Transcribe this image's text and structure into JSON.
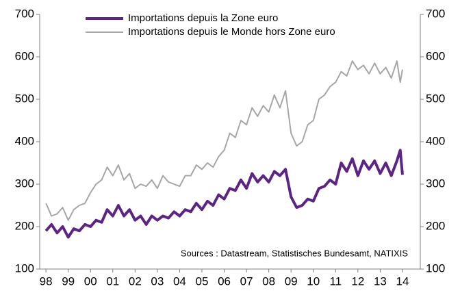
{
  "chart_data": {
    "type": "line",
    "annotation": "Sources : Datastream, Statistisches Bundesamt, NATIXIS",
    "x": [
      1998,
      1998.25,
      1998.5,
      1998.75,
      1999,
      1999.25,
      1999.5,
      1999.75,
      2000,
      2000.25,
      2000.5,
      2000.75,
      2001,
      2001.25,
      2001.5,
      2001.75,
      2002,
      2002.25,
      2002.5,
      2002.75,
      2003,
      2003.25,
      2003.5,
      2003.75,
      2004,
      2004.25,
      2004.5,
      2004.75,
      2005,
      2005.25,
      2005.5,
      2005.75,
      2006,
      2006.25,
      2006.5,
      2006.75,
      2007,
      2007.25,
      2007.5,
      2007.75,
      2008,
      2008.25,
      2008.5,
      2008.75,
      2009,
      2009.25,
      2009.5,
      2009.75,
      2010,
      2010.25,
      2010.5,
      2010.75,
      2011,
      2011.25,
      2011.5,
      2011.75,
      2012,
      2012.25,
      2012.5,
      2012.75,
      2013,
      2013.25,
      2013.5,
      2013.75,
      2013.9,
      2014
    ],
    "series": [
      {
        "name": "Importations depuis la Zone euro",
        "color": "#5c2483",
        "width": 4,
        "values": [
          190,
          205,
          185,
          200,
          175,
          195,
          190,
          205,
          200,
          215,
          210,
          240,
          225,
          250,
          225,
          240,
          215,
          225,
          205,
          225,
          215,
          225,
          220,
          235,
          225,
          240,
          235,
          255,
          240,
          260,
          250,
          275,
          265,
          290,
          285,
          310,
          290,
          325,
          305,
          320,
          305,
          330,
          320,
          335,
          270,
          245,
          250,
          265,
          260,
          290,
          295,
          310,
          300,
          350,
          330,
          360,
          320,
          355,
          335,
          355,
          325,
          350,
          320,
          355,
          380,
          322
        ]
      },
      {
        "name": "Importations depuis le Monde hors Zone euro",
        "color": "#a6a6a6",
        "width": 2,
        "values": [
          255,
          225,
          230,
          245,
          215,
          240,
          250,
          255,
          280,
          300,
          310,
          340,
          320,
          345,
          310,
          325,
          290,
          300,
          295,
          310,
          290,
          320,
          305,
          300,
          295,
          320,
          320,
          345,
          335,
          350,
          340,
          365,
          380,
          420,
          410,
          450,
          440,
          480,
          460,
          485,
          470,
          510,
          480,
          520,
          420,
          390,
          400,
          440,
          450,
          500,
          510,
          530,
          540,
          565,
          555,
          590,
          570,
          580,
          560,
          585,
          560,
          575,
          550,
          590,
          540,
          570
        ]
      }
    ],
    "xlim": [
      1997.72,
      2014.8
    ],
    "xticks": [
      {
        "value": 1998,
        "label": "98"
      },
      {
        "value": 1999,
        "label": "99"
      },
      {
        "value": 2000,
        "label": "00"
      },
      {
        "value": 2001,
        "label": "01"
      },
      {
        "value": 2002,
        "label": "02"
      },
      {
        "value": 2003,
        "label": "03"
      },
      {
        "value": 2004,
        "label": "04"
      },
      {
        "value": 2005,
        "label": "05"
      },
      {
        "value": 2006,
        "label": "06"
      },
      {
        "value": 2007,
        "label": "07"
      },
      {
        "value": 2008,
        "label": "08"
      },
      {
        "value": 2009,
        "label": "09"
      },
      {
        "value": 2010,
        "label": "10"
      },
      {
        "value": 2011,
        "label": "11"
      },
      {
        "value": 2012,
        "label": "12"
      },
      {
        "value": 2013,
        "label": "13"
      },
      {
        "value": 2014,
        "label": "14"
      }
    ],
    "ylim": [
      100,
      700
    ],
    "yticks": [
      100,
      200,
      300,
      400,
      500,
      600,
      700
    ],
    "y2lim": [
      100,
      700
    ],
    "y2ticks": [
      100,
      200,
      300,
      400,
      500,
      600,
      700
    ]
  }
}
